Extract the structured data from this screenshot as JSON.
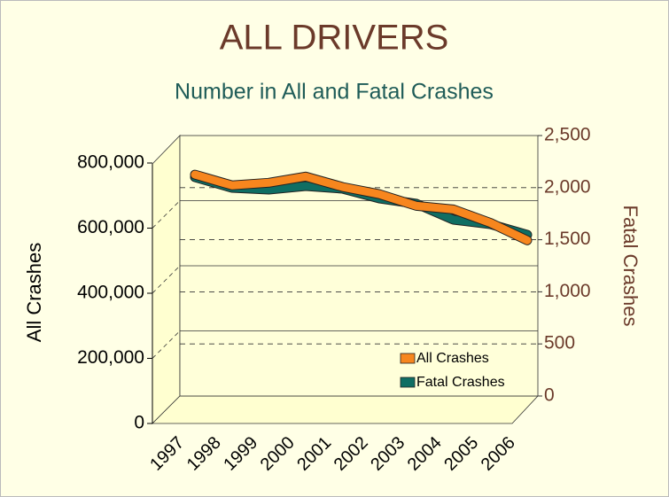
{
  "chart_data": {
    "type": "line",
    "title": "ALL DRIVERS",
    "subtitle": "Number in All and Fatal Crashes",
    "y_label": "All Crashes",
    "y2_label": "Fatal Crashes",
    "categories": [
      "1997",
      "1998",
      "1999",
      "2000",
      "2001",
      "2002",
      "2003",
      "2004",
      "2005",
      "2006"
    ],
    "series": [
      {
        "name": "All Crashes",
        "color": "#F7861E",
        "axis": "y",
        "values": [
          680000,
          647000,
          655000,
          674000,
          642000,
          620000,
          584000,
          573000,
          532000,
          478000
        ]
      },
      {
        "name": "Fatal Crashes",
        "color": "#0F6E63",
        "axis": "y2",
        "values": [
          2100,
          1998,
          1981,
          2015,
          1990,
          1896,
          1845,
          1692,
          1650,
          1548
        ]
      }
    ],
    "ylim": [
      0,
      800000
    ],
    "yticks": [
      0,
      {
        "value": 200000,
        "label": "200,000"
      },
      {
        "value": 400000,
        "label": "400,000"
      },
      {
        "value": 600000,
        "label": "600,000"
      },
      {
        "value": 800000,
        "label": "800,000"
      }
    ],
    "y2lim": [
      0,
      2500
    ],
    "y2ticks": [
      0,
      500,
      {
        "value": 1000,
        "label": "1,000"
      },
      {
        "value": 1500,
        "label": "1,500"
      },
      {
        "value": 2000,
        "label": "2,000"
      },
      {
        "value": 2500,
        "label": "2,500"
      }
    ],
    "legend": "bottom-right"
  }
}
